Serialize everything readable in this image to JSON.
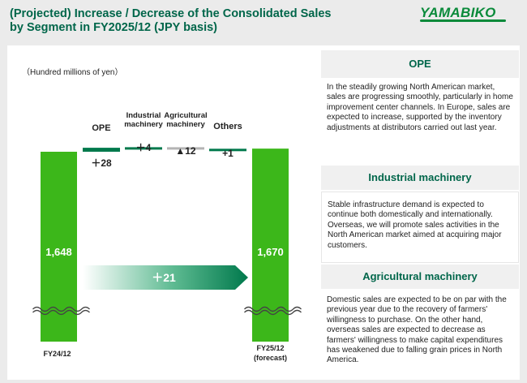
{
  "header": {
    "title_line1": "(Projected) Increase / Decrease of the Consolidated Sales",
    "title_line2": "by Segment in FY2025/12 (JPY basis)",
    "logo": "YAMABIKO"
  },
  "chart_data": {
    "type": "waterfall",
    "unit_label": "（Hundred millions of yen）",
    "start": {
      "category": "FY24/12",
      "value": 1648,
      "label": "1,648"
    },
    "end": {
      "category_line1": "FY25/12",
      "category_line2": "(forecast)",
      "value": 1670,
      "label": "1,670"
    },
    "total_change": {
      "value": 21,
      "label": "＋21"
    },
    "segments": [
      {
        "name": "OPE",
        "name_line1": "OPE",
        "name_line2": "",
        "change": 28,
        "label": "＋28",
        "color": "#00794c"
      },
      {
        "name": "Industrial machinery",
        "name_line1": "Industrial",
        "name_line2": "machinery",
        "change": 4,
        "label": "＋4",
        "color": "#00794c"
      },
      {
        "name": "Agricultural machinery",
        "name_line1": "Agricultural",
        "name_line2": "machinery",
        "change": -12,
        "label": "▲12",
        "color": "#b4b4b4"
      },
      {
        "name": "Others",
        "name_line1": "Others",
        "name_line2": "",
        "change": 1,
        "label": "+1",
        "color": "#00794c"
      }
    ],
    "bar_color": "#3cb71a",
    "axis_broken": true
  },
  "segments_panel": [
    {
      "title": "OPE",
      "body": "In the steadily growing North American market, sales are progressing smoothly, particularly in home improvement center channels. In Europe, sales are expected to increase, supported by the inventory adjustments at distributors carried out last year."
    },
    {
      "title": "Industrial machinery",
      "body": "Stable infrastructure demand is expected to continue both domestically and internationally. Overseas, we will promote sales activities in the North American market aimed at acquiring major customers."
    },
    {
      "title": "Agricultural machinery",
      "body": "Domestic sales are expected to be on par with the previous year due to the recovery of farmers' willingness to purchase. On the other hand, overseas sales are expected to decrease as farmers' willingness to make capital expenditures has weakened due to falling grain prices in North America."
    }
  ]
}
